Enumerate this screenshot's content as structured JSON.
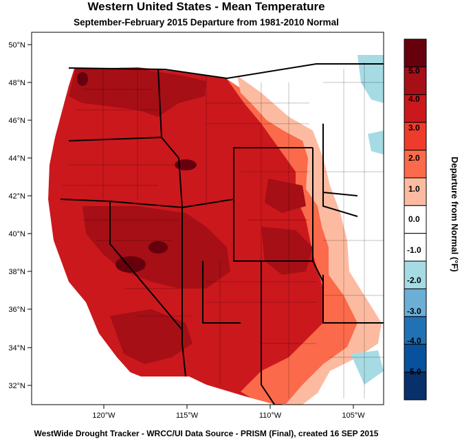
{
  "title": "Western United States - Mean Temperature",
  "subtitle": "September-February 2015  Departure from 1981-2010 Normal",
  "footer": "WestWide Drought Tracker - WRCC/UI  Data Source - PRISM (Final), created 16 SEP 2015",
  "lat_labels": [
    "50°N",
    "48°N",
    "46°N",
    "44°N",
    "42°N",
    "40°N",
    "38°N",
    "36°N",
    "34°N",
    "32°N"
  ],
  "lon_labels": [
    "120°W",
    "115°W",
    "110°W",
    "105°W"
  ],
  "colorbar": {
    "title": "Departure from Normal (°F)",
    "labels": [
      "5.0",
      "4.0",
      "3.0",
      "2.0",
      "1.0",
      "0.0",
      "-1.0",
      "-2.0",
      "-3.0",
      "-4.0",
      "-5.0"
    ],
    "colors": [
      "#67000d",
      "#a50f15",
      "#cb181d",
      "#ef3b2c",
      "#fb6a4a",
      "#fcbba1",
      "#ffffff",
      "#ffffff",
      "#a6dbe4",
      "#6baed6",
      "#2171b5",
      "#08519c",
      "#08306b"
    ]
  }
}
